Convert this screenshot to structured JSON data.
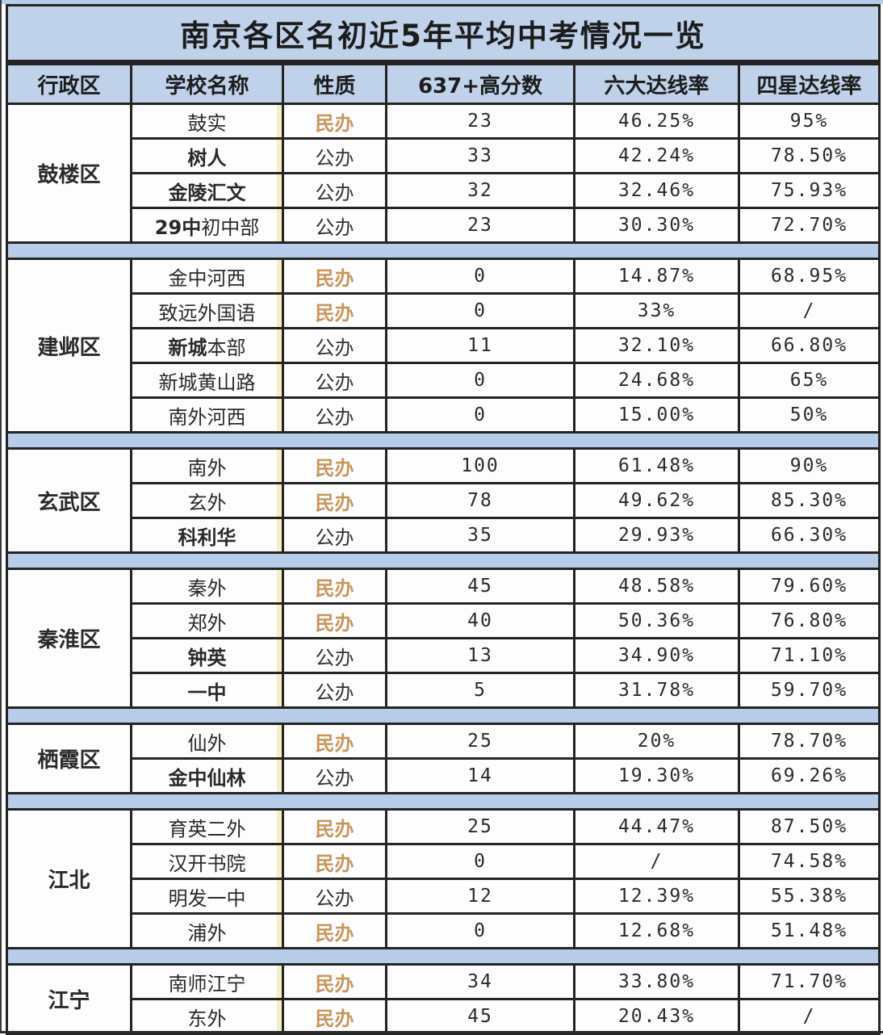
{
  "colors": {
    "panel_blue": "#bfd2ea",
    "band_blue": "#b7cce8",
    "border_dark": "#242424",
    "minban_orange": "#c9955c",
    "gongban_dark": "#333333",
    "stripe_yellow": "#f4efc6"
  },
  "chart_data": {
    "type": "table",
    "title": "南京各区名初近5年平均中考情况一览",
    "columns": [
      "行政区",
      "学校名称",
      "性质",
      "637+高分数",
      "六大达线率",
      "四星达线率"
    ],
    "groups": [
      {
        "district": "鼓楼区",
        "rows": [
          {
            "school_bold": "",
            "school": "鼓实",
            "type": "民办",
            "score637": "23",
            "six_rate": "46.25%",
            "four_star": "95%"
          },
          {
            "school_bold": "树人",
            "school": "",
            "type": "公办",
            "score637": "33",
            "six_rate": "42.24%",
            "four_star": "78.50%"
          },
          {
            "school_bold": "金陵汇文",
            "school": "",
            "type": "公办",
            "score637": "32",
            "six_rate": "32.46%",
            "four_star": "75.93%"
          },
          {
            "school_bold": "29中",
            "school": "初中部",
            "type": "公办",
            "score637": "23",
            "six_rate": "30.30%",
            "four_star": "72.70%"
          }
        ]
      },
      {
        "district": "建邺区",
        "rows": [
          {
            "school_bold": "",
            "school": "金中河西",
            "type": "民办",
            "score637": "0",
            "six_rate": "14.87%",
            "four_star": "68.95%"
          },
          {
            "school_bold": "",
            "school": "致远外国语",
            "type": "民办",
            "score637": "0",
            "six_rate": "33%",
            "four_star": "/"
          },
          {
            "school_bold": "新城",
            "school": "本部",
            "type": "公办",
            "score637": "11",
            "six_rate": "32.10%",
            "four_star": "66.80%"
          },
          {
            "school_bold": "",
            "school": "新城黄山路",
            "type": "公办",
            "score637": "0",
            "six_rate": "24.68%",
            "four_star": "65%"
          },
          {
            "school_bold": "",
            "school": "南外河西",
            "type": "公办",
            "score637": "0",
            "six_rate": "15.00%",
            "four_star": "50%"
          }
        ]
      },
      {
        "district": "玄武区",
        "rows": [
          {
            "school_bold": "",
            "school": "南外",
            "type": "民办",
            "score637": "100",
            "six_rate": "61.48%",
            "four_star": "90%"
          },
          {
            "school_bold": "",
            "school": "玄外",
            "type": "民办",
            "score637": "78",
            "six_rate": "49.62%",
            "four_star": "85.30%"
          },
          {
            "school_bold": "科利华",
            "school": "",
            "type": "公办",
            "score637": "35",
            "six_rate": "29.93%",
            "four_star": "66.30%"
          }
        ]
      },
      {
        "district": "秦淮区",
        "rows": [
          {
            "school_bold": "",
            "school": "秦外",
            "type": "民办",
            "score637": "45",
            "six_rate": "48.58%",
            "four_star": "79.60%"
          },
          {
            "school_bold": "",
            "school": "郑外",
            "type": "民办",
            "score637": "40",
            "six_rate": "50.36%",
            "four_star": "76.80%"
          },
          {
            "school_bold": "钟英",
            "school": "",
            "type": "公办",
            "score637": "13",
            "six_rate": "34.90%",
            "four_star": "71.10%"
          },
          {
            "school_bold": "一中",
            "school": "",
            "type": "公办",
            "score637": "5",
            "six_rate": "31.78%",
            "four_star": "59.70%"
          }
        ]
      },
      {
        "district": "栖霞区",
        "rows": [
          {
            "school_bold": "",
            "school": "仙外",
            "type": "民办",
            "score637": "25",
            "six_rate": "20%",
            "four_star": "78.70%"
          },
          {
            "school_bold": "金中仙林",
            "school": "",
            "type": "公办",
            "score637": "14",
            "six_rate": "19.30%",
            "four_star": "69.26%"
          }
        ]
      },
      {
        "district": "江北",
        "rows": [
          {
            "school_bold": "",
            "school": "育英二外",
            "type": "民办",
            "score637": "25",
            "six_rate": "44.47%",
            "four_star": "87.50%"
          },
          {
            "school_bold": "",
            "school": "汉开书院",
            "type": "民办",
            "score637": "0",
            "six_rate": "/",
            "four_star": "74.58%"
          },
          {
            "school_bold": "",
            "school": "明发一中",
            "type": "公办",
            "score637": "12",
            "six_rate": "12.39%",
            "four_star": "55.38%"
          },
          {
            "school_bold": "",
            "school": "浦外",
            "type": "民办",
            "score637": "0",
            "six_rate": "12.68%",
            "four_star": "51.48%"
          }
        ]
      },
      {
        "district": "江宁",
        "rows": [
          {
            "school_bold": "",
            "school": "南师江宁",
            "type": "民办",
            "score637": "34",
            "six_rate": "33.80%",
            "four_star": "71.70%"
          },
          {
            "school_bold": "",
            "school": "东外",
            "type": "民办",
            "score637": "45",
            "six_rate": "20.43%",
            "four_star": "/"
          }
        ]
      }
    ]
  }
}
